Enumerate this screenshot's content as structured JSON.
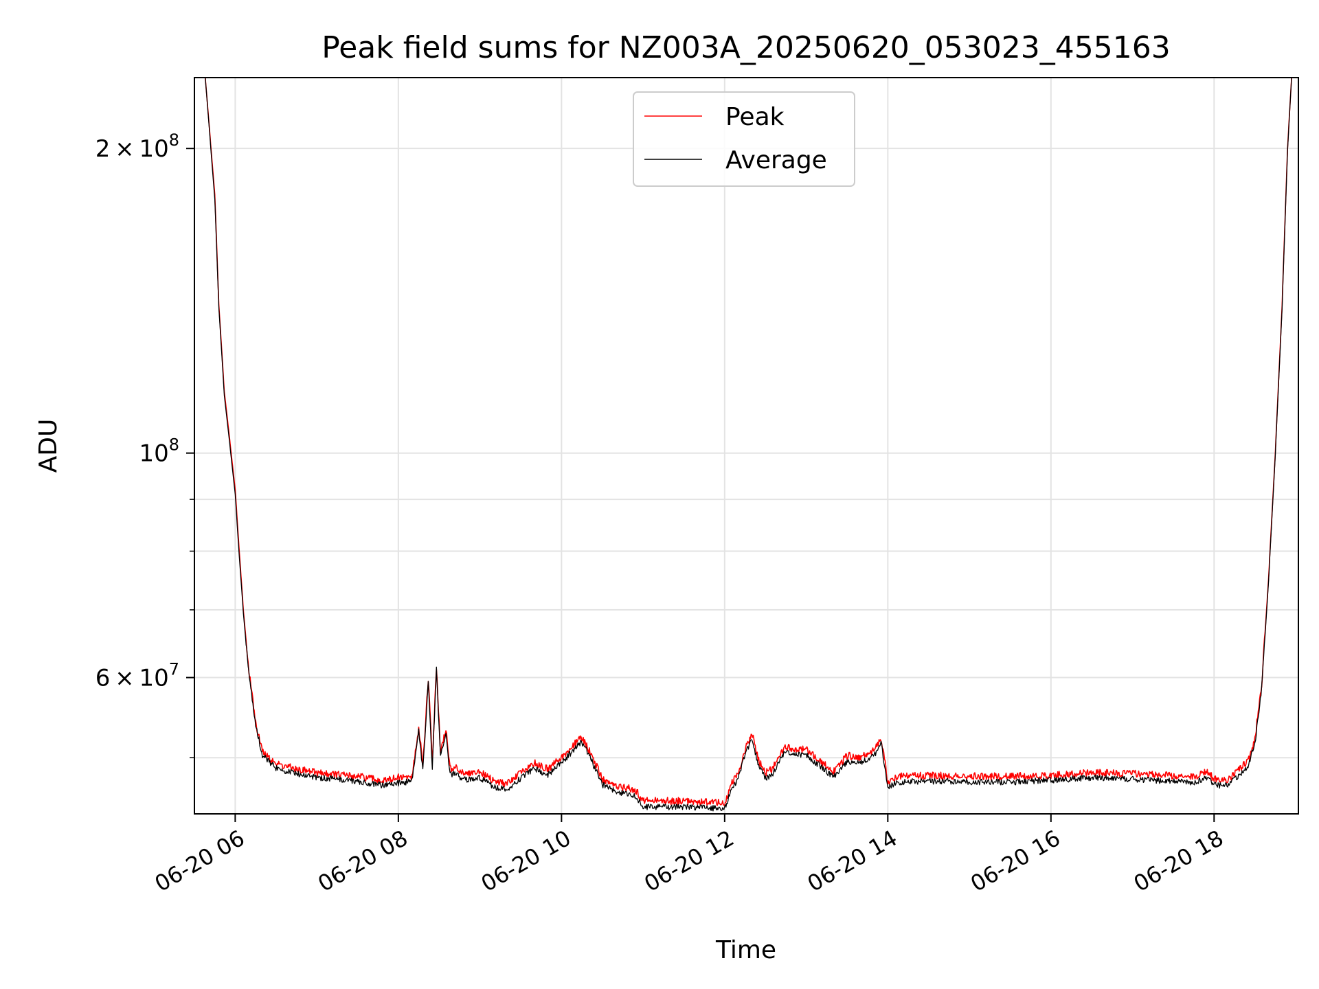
{
  "chart_data": {
    "type": "line",
    "title": "Peak field sums for NZ003A_20250620_053023_455163",
    "xlabel": "Time",
    "ylabel": "ADU",
    "y_scale": "log",
    "grid": true,
    "legend_position": "upper center",
    "xlim": [
      "2025-06-20 05:30",
      "2025-06-20 19:02"
    ],
    "ylim": [
      44000000,
      235000000
    ],
    "x_ticks": [
      {
        "value": "2025-06-20 06:00",
        "label": "06-20 06"
      },
      {
        "value": "2025-06-20 08:00",
        "label": "06-20 08"
      },
      {
        "value": "2025-06-20 10:00",
        "label": "06-20 10"
      },
      {
        "value": "2025-06-20 12:00",
        "label": "06-20 12"
      },
      {
        "value": "2025-06-20 14:00",
        "label": "06-20 14"
      },
      {
        "value": "2025-06-20 16:00",
        "label": "06-20 16"
      },
      {
        "value": "2025-06-20 18:00",
        "label": "06-20 18"
      }
    ],
    "y_major_ticks": [
      {
        "value": 60000000,
        "mantissa": "6",
        "exponent": "7"
      },
      {
        "value": 100000000,
        "mantissa": "",
        "exponent": "8"
      },
      {
        "value": 200000000,
        "mantissa": "2",
        "exponent": "8"
      }
    ],
    "y_minor_ticks": [
      50000000,
      70000000,
      80000000,
      90000000
    ],
    "series": [
      {
        "name": "Peak",
        "color": "#ff0000",
        "x": [
          "05:30",
          "05:38",
          "05:45",
          "05:48",
          "05:52",
          "05:56",
          "06:00",
          "06:03",
          "06:06",
          "06:10",
          "06:15",
          "06:20",
          "06:30",
          "06:45",
          "07:00",
          "07:30",
          "07:50",
          "08:00",
          "08:10",
          "08:15",
          "08:18",
          "08:22",
          "08:25",
          "08:28",
          "08:31",
          "08:35",
          "08:38",
          "08:42",
          "08:45",
          "08:50",
          "09:00",
          "09:10",
          "09:20",
          "09:30",
          "09:40",
          "09:50",
          "10:00",
          "10:10",
          "10:15",
          "10:22",
          "10:30",
          "10:40",
          "10:50",
          "10:55",
          "11:00",
          "11:05",
          "11:15",
          "11:30",
          "11:45",
          "12:00",
          "12:05",
          "12:10",
          "12:15",
          "12:20",
          "12:25",
          "12:30",
          "12:35",
          "12:40",
          "12:45",
          "12:50",
          "13:00",
          "13:10",
          "13:20",
          "13:30",
          "13:40",
          "13:50",
          "13:55",
          "14:00",
          "14:05",
          "14:10",
          "14:30",
          "15:00",
          "15:30",
          "16:00",
          "16:30",
          "17:00",
          "17:30",
          "17:45",
          "17:55",
          "18:00",
          "18:10",
          "18:20",
          "18:25",
          "18:30",
          "18:35",
          "18:40",
          "18:45",
          "18:50",
          "18:54",
          "18:57",
          "19:02"
        ],
        "values": [
          235000000,
          235000000,
          180000000,
          140000000,
          115000000,
          103000000,
          92000000,
          80000000,
          70000000,
          61000000,
          54000000,
          50500000,
          49200000,
          48600000,
          48200000,
          47800000,
          47300000,
          47700000,
          47800000,
          53500000,
          49000000,
          59800000,
          49500000,
          61500000,
          50500000,
          53200000,
          48600000,
          48800000,
          48300000,
          48100000,
          48300000,
          47300000,
          47000000,
          48200000,
          49300000,
          48600000,
          49900000,
          51500000,
          52200000,
          50200000,
          47500000,
          46800000,
          46500000,
          46200000,
          45200000,
          45200000,
          45200000,
          45200000,
          45100000,
          45000000,
          47000000,
          48200000,
          50800000,
          52700000,
          49600000,
          48200000,
          48600000,
          50100000,
          51200000,
          50800000,
          50800000,
          49600000,
          48300000,
          50100000,
          49900000,
          50700000,
          52200000,
          47200000,
          47600000,
          47800000,
          47900000,
          47800000,
          47800000,
          47900000,
          48200000,
          48100000,
          47900000,
          47700000,
          48300000,
          47500000,
          47400000,
          48800000,
          49500000,
          52000000,
          59000000,
          75000000,
          100000000,
          140000000,
          200000000,
          235000000,
          235000000
        ]
      },
      {
        "name": "Average",
        "color": "#000000",
        "x": [
          "05:30",
          "05:38",
          "05:45",
          "05:48",
          "05:52",
          "05:56",
          "06:00",
          "06:03",
          "06:06",
          "06:10",
          "06:15",
          "06:20",
          "06:30",
          "06:45",
          "07:00",
          "07:30",
          "07:50",
          "08:00",
          "08:10",
          "08:15",
          "08:18",
          "08:22",
          "08:25",
          "08:28",
          "08:31",
          "08:35",
          "08:38",
          "08:42",
          "08:45",
          "08:50",
          "09:00",
          "09:10",
          "09:20",
          "09:30",
          "09:40",
          "09:50",
          "10:00",
          "10:10",
          "10:15",
          "10:22",
          "10:30",
          "10:40",
          "10:50",
          "10:55",
          "11:00",
          "11:05",
          "11:15",
          "11:30",
          "11:45",
          "12:00",
          "12:05",
          "12:10",
          "12:15",
          "12:20",
          "12:25",
          "12:30",
          "12:35",
          "12:40",
          "12:45",
          "12:50",
          "13:00",
          "13:10",
          "13:20",
          "13:30",
          "13:40",
          "13:50",
          "13:55",
          "14:00",
          "14:05",
          "14:10",
          "14:30",
          "15:00",
          "15:30",
          "16:00",
          "16:30",
          "17:00",
          "17:30",
          "17:45",
          "17:55",
          "18:00",
          "18:10",
          "18:20",
          "18:25",
          "18:30",
          "18:35",
          "18:40",
          "18:45",
          "18:50",
          "18:54",
          "18:57",
          "19:02"
        ],
        "values": [
          235000000,
          235000000,
          178000000,
          139000000,
          114000000,
          102000000,
          91000000,
          79000000,
          69500000,
          60500000,
          53800000,
          50200000,
          48700000,
          48100000,
          47700000,
          47300000,
          46800000,
          47100000,
          47300000,
          53000000,
          48400000,
          59300000,
          48900000,
          61000000,
          50000000,
          52700000,
          48000000,
          48200000,
          47700000,
          47500000,
          47700000,
          46700000,
          46400000,
          47600000,
          48700000,
          48000000,
          49300000,
          51000000,
          51700000,
          49600000,
          46900000,
          46200000,
          45900000,
          45600000,
          44600000,
          44600000,
          44600000,
          44600000,
          44500000,
          44400000,
          46400000,
          47600000,
          50200000,
          52200000,
          49000000,
          47600000,
          48000000,
          49500000,
          50600000,
          50200000,
          50200000,
          49000000,
          47700000,
          49500000,
          49300000,
          50100000,
          51700000,
          46600000,
          47000000,
          47200000,
          47300000,
          47200000,
          47200000,
          47400000,
          47700000,
          47500000,
          47300000,
          47100000,
          47700000,
          46900000,
          46800000,
          48200000,
          49000000,
          51500000,
          58500000,
          74500000,
          99500000,
          139000000,
          199000000,
          235000000,
          235000000
        ]
      }
    ]
  }
}
